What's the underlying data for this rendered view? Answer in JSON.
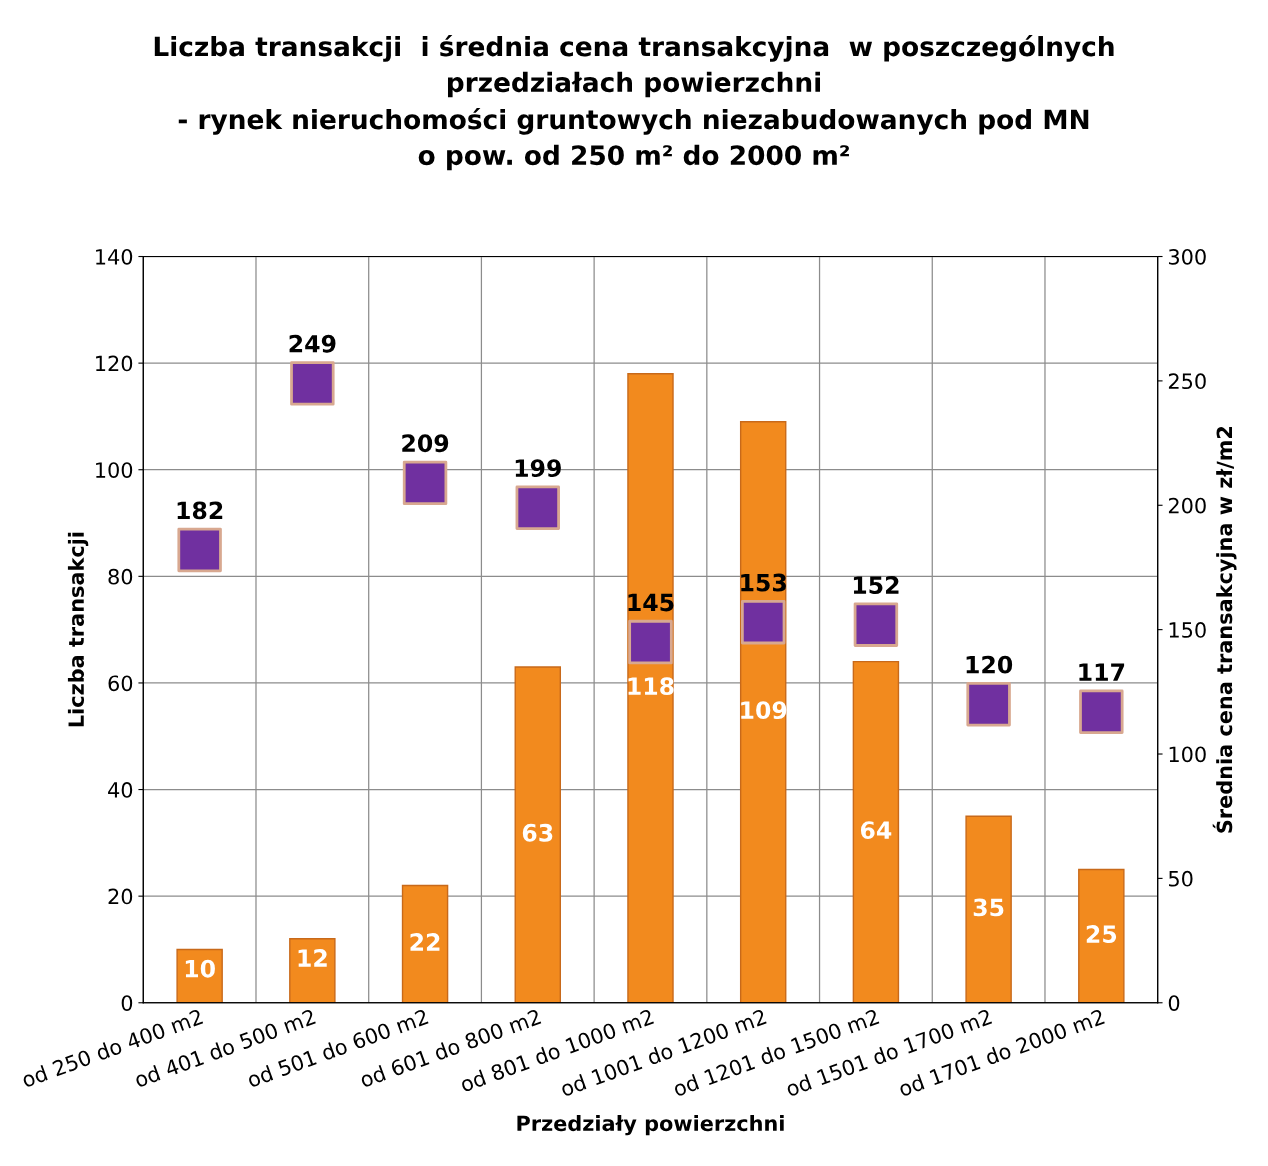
{
  "chart_data": {
    "type": "bar",
    "title": "Liczba transakcji  i średnia cena transakcyjna  w poszczególnych\nprzedziałach powierzchni\n- rynek nieruchomości gruntowych niezabudowanych pod MN\no pow. od 250 m² do 2000 m²",
    "xlabel": "Przedziały powierzchni",
    "ylabel": "Liczba transakcji",
    "y2label": "Średnia cena transakcyjna w zł/m2",
    "categories": [
      "od 250 do 400 m2",
      "od 401 do 500 m2",
      "od 501 do 600 m2",
      "od 601 do 800 m2",
      "od 801 do 1000 m2",
      "od 1001 do 1200 m2",
      "od 1201 do 1500 m2",
      "od 1501 do 1700 m2",
      "od 1701 do 2000 m2"
    ],
    "series": [
      {
        "color": "#f28a1e",
        "values": [
          10,
          12,
          22,
          63,
          118,
          109,
          64,
          35,
          25
        ]
      },
      {
        "type": "scatter",
        "axis": "y2",
        "color": "#7030a0",
        "marker": "square",
        "values": [
          182,
          249,
          209,
          199,
          145,
          153,
          152,
          120,
          117
        ]
      }
    ],
    "ylim": [
      0,
      140
    ],
    "yticks": [
      0,
      20,
      40,
      60,
      80,
      100,
      120,
      140
    ],
    "y2lim": [
      0,
      300
    ],
    "y2ticks": [
      0,
      50,
      100,
      150,
      200,
      250,
      300
    ],
    "grid": true,
    "data_labels": true,
    "legend": false
  }
}
